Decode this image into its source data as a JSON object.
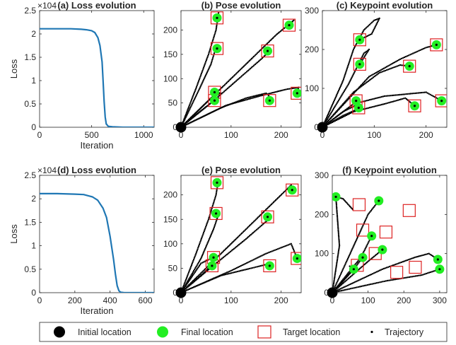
{
  "chart_data": [
    {
      "id": "a",
      "type": "line",
      "title": "(a) Loss evolution",
      "xlabel": "Iteration",
      "ylabel": "Loss",
      "y_exponent": "×10^4",
      "xlim": [
        0,
        1100
      ],
      "ylim": [
        0,
        2.5
      ],
      "xticks": [
        0,
        500,
        1000
      ],
      "yticks": [
        0,
        0.5,
        1,
        1.5,
        2,
        2.5
      ],
      "series": [
        {
          "color": "#1f77b4",
          "x": [
            0,
            100,
            200,
            300,
            400,
            450,
            500,
            530,
            560,
            580,
            600,
            610,
            620,
            630,
            640,
            660,
            700,
            800,
            1100
          ],
          "y": [
            2.11,
            2.11,
            2.11,
            2.11,
            2.1,
            2.09,
            2.07,
            2.03,
            1.92,
            1.75,
            1.4,
            1.0,
            0.55,
            0.22,
            0.07,
            0.02,
            0.01,
            0.0,
            0.0
          ]
        }
      ]
    },
    {
      "id": "b",
      "type": "scatter",
      "title": "(b) Pose evolution",
      "xlim": [
        0,
        240
      ],
      "ylim": [
        0,
        240
      ],
      "xticks": [
        0,
        100,
        200
      ],
      "yticks": [
        0,
        50,
        100,
        150,
        200
      ],
      "initial": [
        [
          0,
          0
        ]
      ],
      "final": [
        [
          67,
          55
        ],
        [
          67,
          72
        ],
        [
          72,
          162
        ],
        [
          72,
          225
        ],
        [
          173,
          157
        ],
        [
          177,
          55
        ],
        [
          216,
          210
        ],
        [
          232,
          70
        ]
      ],
      "target": [
        [
          67,
          55
        ],
        [
          67,
          72
        ],
        [
          72,
          162
        ],
        [
          72,
          225
        ],
        [
          173,
          157
        ],
        [
          177,
          55
        ],
        [
          216,
          210
        ],
        [
          232,
          70
        ]
      ],
      "trajectories": [
        [
          [
            0,
            0
          ],
          [
            30,
            80
          ],
          [
            55,
            150
          ],
          [
            70,
            200
          ],
          [
            75,
            235
          ],
          [
            72,
            225
          ]
        ],
        [
          [
            0,
            0
          ],
          [
            35,
            75
          ],
          [
            60,
            130
          ],
          [
            70,
            165
          ],
          [
            72,
            162
          ]
        ],
        [
          [
            0,
            0
          ],
          [
            35,
            35
          ],
          [
            60,
            60
          ],
          [
            80,
            70
          ],
          [
            70,
            72
          ]
        ],
        [
          [
            0,
            0
          ],
          [
            35,
            30
          ],
          [
            60,
            50
          ],
          [
            75,
            60
          ],
          [
            67,
            55
          ]
        ],
        [
          [
            0,
            0
          ],
          [
            60,
            50
          ],
          [
            110,
            95
          ],
          [
            160,
            140
          ],
          [
            175,
            155
          ],
          [
            173,
            157
          ]
        ],
        [
          [
            0,
            0
          ],
          [
            80,
            40
          ],
          [
            130,
            60
          ],
          [
            170,
            70
          ],
          [
            180,
            60
          ],
          [
            177,
            55
          ]
        ],
        [
          [
            0,
            0
          ],
          [
            70,
            70
          ],
          [
            130,
            130
          ],
          [
            190,
            190
          ],
          [
            225,
            220
          ],
          [
            216,
            210
          ]
        ],
        [
          [
            0,
            0
          ],
          [
            90,
            45
          ],
          [
            160,
            65
          ],
          [
            210,
            78
          ],
          [
            235,
            82
          ],
          [
            232,
            70
          ]
        ]
      ]
    },
    {
      "id": "c",
      "type": "scatter",
      "title": "(c) Keypoint evolution",
      "xlim": [
        0,
        240
      ],
      "ylim": [
        0,
        300
      ],
      "xticks": [
        0,
        100,
        200
      ],
      "yticks": [
        0,
        100,
        200,
        300
      ],
      "initial": [
        [
          0,
          0
        ]
      ],
      "final": [
        [
          65,
          68
        ],
        [
          70,
          50
        ],
        [
          72,
          225
        ],
        [
          72,
          162
        ],
        [
          168,
          157
        ],
        [
          178,
          55
        ],
        [
          220,
          212
        ],
        [
          230,
          68
        ]
      ],
      "target": [
        [
          65,
          68
        ],
        [
          70,
          50
        ],
        [
          72,
          225
        ],
        [
          72,
          162
        ],
        [
          168,
          157
        ],
        [
          178,
          55
        ],
        [
          220,
          212
        ],
        [
          230,
          68
        ]
      ],
      "trajectories": [
        [
          [
            0,
            0
          ],
          [
            40,
            120
          ],
          [
            60,
            200
          ],
          [
            80,
            250
          ],
          [
            100,
            275
          ],
          [
            110,
            280
          ],
          [
            95,
            240
          ],
          [
            72,
            225
          ]
        ],
        [
          [
            0,
            0
          ],
          [
            50,
            110
          ],
          [
            80,
            190
          ],
          [
            90,
            200
          ],
          [
            72,
            162
          ]
        ],
        [
          [
            0,
            0
          ],
          [
            60,
            90
          ],
          [
            110,
            140
          ],
          [
            150,
            160
          ],
          [
            168,
            157
          ]
        ],
        [
          [
            0,
            0
          ],
          [
            90,
            130
          ],
          [
            150,
            175
          ],
          [
            200,
            205
          ],
          [
            220,
            212
          ]
        ],
        [
          [
            0,
            0
          ],
          [
            60,
            60
          ],
          [
            120,
            80
          ],
          [
            200,
            90
          ],
          [
            230,
            68
          ]
        ],
        [
          [
            0,
            0
          ],
          [
            60,
            40
          ],
          [
            120,
            60
          ],
          [
            160,
            75
          ],
          [
            178,
            55
          ]
        ],
        [
          [
            0,
            0
          ],
          [
            40,
            40
          ],
          [
            70,
            60
          ],
          [
            65,
            68
          ]
        ],
        [
          [
            0,
            0
          ],
          [
            40,
            30
          ],
          [
            65,
            45
          ],
          [
            70,
            50
          ]
        ]
      ]
    },
    {
      "id": "d",
      "type": "line",
      "title": "(d) Loss evolution",
      "xlabel": "Iteration",
      "ylabel": "Loss",
      "y_exponent": "×10^4",
      "xlim": [
        0,
        650
      ],
      "ylim": [
        0,
        2.5
      ],
      "xticks": [
        0,
        200,
        400,
        600
      ],
      "yticks": [
        0,
        0.5,
        1,
        1.5,
        2,
        2.5
      ],
      "series": [
        {
          "color": "#1f77b4",
          "x": [
            0,
            100,
            200,
            250,
            300,
            330,
            360,
            380,
            400,
            420,
            430,
            440,
            450,
            460,
            480,
            520,
            650
          ],
          "y": [
            2.11,
            2.11,
            2.1,
            2.09,
            2.04,
            1.97,
            1.8,
            1.6,
            1.2,
            0.7,
            0.4,
            0.15,
            0.04,
            0.01,
            0.0,
            0.0,
            0.0
          ]
        }
      ]
    },
    {
      "id": "e",
      "type": "scatter",
      "title": "(e) Pose evolution",
      "xlim": [
        0,
        240
      ],
      "ylim": [
        0,
        240
      ],
      "xticks": [
        0,
        100,
        200
      ],
      "yticks": [
        0,
        50,
        100,
        150,
        200
      ],
      "initial": [
        [
          0,
          0
        ]
      ],
      "final": [
        [
          62,
          55
        ],
        [
          65,
          72
        ],
        [
          70,
          162
        ],
        [
          72,
          225
        ],
        [
          173,
          155
        ],
        [
          177,
          55
        ],
        [
          222,
          210
        ],
        [
          232,
          70
        ]
      ],
      "target": [
        [
          62,
          55
        ],
        [
          65,
          72
        ],
        [
          70,
          162
        ],
        [
          72,
          225
        ],
        [
          173,
          155
        ],
        [
          177,
          55
        ],
        [
          222,
          210
        ],
        [
          232,
          70
        ]
      ],
      "trajectories": [
        [
          [
            0,
            0
          ],
          [
            30,
            80
          ],
          [
            55,
            150
          ],
          [
            70,
            200
          ],
          [
            75,
            232
          ],
          [
            72,
            225
          ]
        ],
        [
          [
            0,
            0
          ],
          [
            40,
            70
          ],
          [
            65,
            130
          ],
          [
            75,
            160
          ],
          [
            70,
            162
          ]
        ],
        [
          [
            0,
            0
          ],
          [
            45,
            40
          ],
          [
            60,
            55
          ],
          [
            62,
            55
          ]
        ],
        [
          [
            0,
            0
          ],
          [
            40,
            60
          ],
          [
            60,
            70
          ],
          [
            65,
            72
          ]
        ],
        [
          [
            0,
            0
          ],
          [
            70,
            60
          ],
          [
            130,
            110
          ],
          [
            175,
            150
          ],
          [
            173,
            155
          ]
        ],
        [
          [
            0,
            0
          ],
          [
            80,
            35
          ],
          [
            140,
            50
          ],
          [
            180,
            60
          ],
          [
            177,
            55
          ]
        ],
        [
          [
            0,
            0
          ],
          [
            80,
            80
          ],
          [
            150,
            150
          ],
          [
            220,
            220
          ],
          [
            222,
            210
          ]
        ],
        [
          [
            0,
            0
          ],
          [
            100,
            45
          ],
          [
            170,
            80
          ],
          [
            220,
            100
          ],
          [
            232,
            70
          ]
        ]
      ]
    },
    {
      "id": "f",
      "type": "scatter",
      "title": "(f) Keypoint evolution",
      "xlim": [
        0,
        320
      ],
      "ylim": [
        0,
        300
      ],
      "xticks": [
        0,
        100,
        200,
        300
      ],
      "yticks": [
        0,
        100,
        200,
        300
      ],
      "initial": [
        [
          0,
          0
        ]
      ],
      "final": [
        [
          -25,
          60
        ],
        [
          10,
          245
        ],
        [
          60,
          60
        ],
        [
          85,
          90
        ],
        [
          110,
          145
        ],
        [
          130,
          235
        ],
        [
          140,
          110
        ],
        [
          295,
          85
        ],
        [
          300,
          60
        ]
      ],
      "target": [
        [
          75,
          225
        ],
        [
          85,
          160
        ],
        [
          70,
          70
        ],
        [
          150,
          155
        ],
        [
          215,
          210
        ],
        [
          180,
          52
        ],
        [
          232,
          65
        ],
        [
          120,
          100
        ]
      ],
      "trajectories": [
        [
          [
            0,
            0
          ],
          [
            -10,
            20
          ],
          [
            -20,
            45
          ],
          [
            -25,
            60
          ]
        ],
        [
          [
            0,
            0
          ],
          [
            20,
            120
          ],
          [
            10,
            245
          ],
          [
            30,
            240
          ],
          [
            55,
            215
          ],
          [
            60,
            210
          ]
        ],
        [
          [
            0,
            0
          ],
          [
            60,
            120
          ],
          [
            100,
            200
          ],
          [
            130,
            235
          ],
          [
            120,
            230
          ]
        ],
        [
          [
            0,
            0
          ],
          [
            80,
            90
          ],
          [
            110,
            145
          ],
          [
            100,
            150
          ]
        ],
        [
          [
            0,
            0
          ],
          [
            100,
            80
          ],
          [
            140,
            110
          ],
          [
            150,
            120
          ]
        ],
        [
          [
            0,
            0
          ],
          [
            40,
            40
          ],
          [
            60,
            60
          ],
          [
            45,
            70
          ]
        ],
        [
          [
            0,
            0
          ],
          [
            60,
            60
          ],
          [
            85,
            90
          ],
          [
            75,
            100
          ]
        ],
        [
          [
            0,
            0
          ],
          [
            140,
            60
          ],
          [
            230,
            90
          ],
          [
            270,
            100
          ],
          [
            295,
            85
          ]
        ],
        [
          [
            0,
            0
          ],
          [
            150,
            30
          ],
          [
            250,
            45
          ],
          [
            300,
            60
          ]
        ]
      ]
    }
  ],
  "legend": {
    "placement": "bottom",
    "items": [
      {
        "label": "Initial location",
        "marker": "initial"
      },
      {
        "label": "Final location",
        "marker": "final"
      },
      {
        "label": "Target location",
        "marker": "target"
      },
      {
        "label": "Trajectory",
        "marker": "trajectory"
      }
    ]
  },
  "colors": {
    "initial": "#000000",
    "final": "#22ee22",
    "target": "#dd2222",
    "line": "#1f77b4"
  }
}
